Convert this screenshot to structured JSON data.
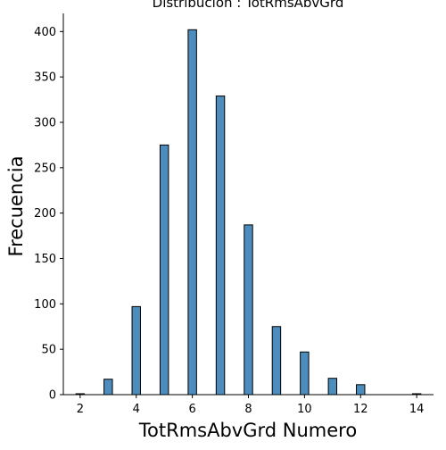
{
  "chart_data": {
    "type": "bar",
    "title": "Distribución : TotRmsAbvGrd",
    "xlabel": "TotRmsAbvGrd Numero",
    "ylabel": "Frecuencia",
    "bar_color": "#4c8dbd",
    "edge_color": "#000000",
    "xlim": [
      1.4,
      14.6
    ],
    "ylim": [
      0,
      420
    ],
    "bar_width": 0.3,
    "x": [
      2,
      3,
      4,
      5,
      6,
      7,
      8,
      9,
      10,
      11,
      12,
      14
    ],
    "values": [
      1,
      17,
      97,
      275,
      402,
      329,
      187,
      75,
      47,
      18,
      11,
      1
    ],
    "x_ticks": [
      2,
      4,
      6,
      8,
      10,
      12,
      14
    ],
    "y_ticks": [
      0,
      50,
      100,
      150,
      200,
      250,
      300,
      350,
      400
    ],
    "grid": false,
    "spines": "left-bottom"
  }
}
